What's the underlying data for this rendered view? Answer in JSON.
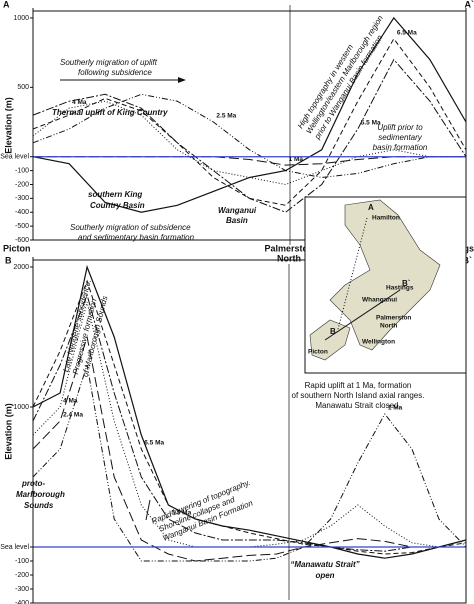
{
  "chart_data": [
    {
      "type": "line",
      "categories": [
        "A",
        null,
        null,
        null,
        null,
        null,
        null,
        null,
        null,
        null,
        null,
        null,
        "A`"
      ],
      "y_label": "Elevation (m)",
      "ylim": [
        -600,
        1050
      ],
      "yticks": [
        1000,
        500,
        {
          "value": 0,
          "label": "Sea level"
        },
        -100,
        -200,
        -300,
        -400,
        -500,
        -600
      ],
      "sea_level_color": "#3344cc",
      "series": [
        {
          "color": "#111",
          "dash": "",
          "values": [
            0,
            -50,
            -330,
            -400,
            -350,
            -250,
            -150,
            -100,
            50,
            600,
            1000,
            700,
            250
          ]
        },
        {
          "name": "6.5 Ma",
          "color": "#111",
          "dash": "5 3",
          "values": [
            200,
            300,
            420,
            330,
            100,
            -150,
            -300,
            -350,
            -100,
            400,
            850,
            500,
            50
          ]
        },
        {
          "name": "5.5 Ma",
          "color": "#111",
          "dash": "8 2 2 2",
          "values": [
            300,
            400,
            450,
            350,
            100,
            -100,
            -300,
            -400,
            -200,
            200,
            700,
            400,
            0
          ]
        },
        {
          "name": "4 Ma",
          "color": "#111",
          "dash": "1 2",
          "values": [
            150,
            350,
            400,
            300,
            50,
            -100,
            -150,
            -200,
            -100,
            0,
            50,
            0,
            0
          ]
        },
        {
          "name": "2.5 Ma",
          "color": "#111",
          "dash": "6 2 1 2 1 2",
          "values": [
            100,
            200,
            350,
            450,
            400,
            250,
            50,
            -100,
            -150,
            -120,
            -50,
            0,
            0
          ]
        },
        {
          "name": "1 Ma",
          "color": "#111",
          "dash": "10 4",
          "values": [
            0,
            0,
            0,
            0,
            0,
            0,
            -20,
            -60,
            -50,
            -20,
            0,
            0,
            0
          ]
        }
      ],
      "annotations": [
        "Southerly migration of uplift",
        "following subsidence",
        "Thermal uplift of King Country",
        "High topography in western",
        "Wellington/eastern Marlborough region",
        "prior to Wanganui Basin formation",
        "Uplift prior to",
        "sedimentary",
        "basin formation",
        "southern King",
        "Country Basin",
        "Wanganui",
        "Basin",
        "Southerly migration of subsidence",
        "and sedimentary basin formation"
      ]
    },
    {
      "type": "line",
      "categories": [
        "Picton",
        null,
        null,
        null,
        null,
        null,
        null,
        null,
        null,
        null,
        null,
        null,
        null,
        null,
        null,
        null,
        "Hastings"
      ],
      "endpoints": [
        "B",
        "B`"
      ],
      "y_label": "Elevation (m)",
      "ylim": [
        -400,
        2050
      ],
      "yticks": [
        2000,
        1000,
        {
          "value": 0,
          "label": "Sea level"
        },
        -100,
        -200,
        -300,
        -400
      ],
      "sea_level_color": "#3344cc",
      "series": [
        {
          "color": "#111",
          "dash": "",
          "values": [
            1000,
            1100,
            2000,
            1500,
            800,
            300,
            200,
            150,
            120,
            80,
            40,
            0,
            -50,
            -80,
            -50,
            0,
            50
          ]
        },
        {
          "name": "6.5 Ma",
          "color": "#111",
          "dash": "5 3",
          "values": [
            1000,
            1400,
            1900,
            1300,
            700,
            300,
            200,
            150,
            100,
            60,
            20,
            0,
            -30,
            -50,
            -40,
            0,
            30
          ]
        },
        {
          "name": "5.5 Ma",
          "color": "#111",
          "dash": "8 2 2 2",
          "values": [
            900,
            1300,
            1800,
            1100,
            500,
            200,
            100,
            50,
            50,
            50,
            30,
            0,
            -20,
            -30,
            0,
            0,
            0
          ]
        },
        {
          "name": "4 Ma",
          "color": "#111",
          "dash": "1 2",
          "values": [
            800,
            1000,
            1750,
            900,
            300,
            50,
            0,
            0,
            0,
            20,
            50,
            150,
            300,
            150,
            30,
            0,
            0
          ]
        },
        {
          "name": "2.4 Ma",
          "color": "#111",
          "dash": "10 4",
          "values": [
            700,
            900,
            1500,
            500,
            50,
            -50,
            -100,
            -80,
            -60,
            -50,
            0,
            30,
            60,
            40,
            0,
            0,
            0
          ]
        },
        {
          "name": "1 Ma",
          "color": "#111",
          "dash": "6 2 1 2 1 2",
          "values": [
            500,
            700,
            1300,
            200,
            -100,
            -100,
            -100,
            -100,
            -100,
            -80,
            0,
            200,
            600,
            950,
            700,
            200,
            0
          ]
        }
      ],
      "annotations": [
        "Late Neogene subsidence.",
        "Progressive formation",
        "of Marlborough Sounds",
        "Rapid uplift at 1 Ma, formation",
        "of southern North Island axial ranges.",
        "Manawatu Strait closed.",
        "proto-",
        "Marlborough",
        "Sounds",
        "Rapid lowering of topography.",
        "Shoreline collapse and",
        "Wanganui Basin Formation",
        "“Manawatu Strait”",
        "open",
        "Palmerston",
        "North"
      ]
    }
  ],
  "map": {
    "labels": [
      "Hamilton",
      "Hastings",
      "B`",
      "Whanganui",
      "Palmerston",
      "North",
      "Wellington",
      "Picton",
      "A",
      "B"
    ]
  }
}
